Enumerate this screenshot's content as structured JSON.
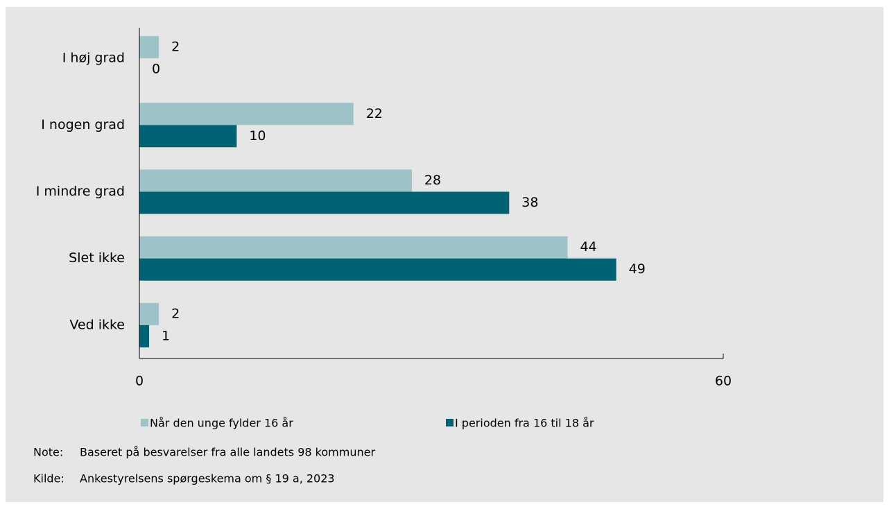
{
  "chart_data": {
    "type": "bar",
    "orientation": "horizontal",
    "categories": [
      "I høj grad",
      "I nogen grad",
      "I mindre grad",
      "Slet ikke",
      "Ved ikke"
    ],
    "series": [
      {
        "name": "Når den unge fylder 16 år",
        "color": "#9dc3c9",
        "values": [
          2,
          22,
          28,
          44,
          2
        ]
      },
      {
        "name": "I perioden fra 16 til 18 år",
        "color": "#006272",
        "values": [
          0,
          10,
          38,
          49,
          1
        ]
      }
    ],
    "xlim": [
      0,
      60
    ],
    "xticks": [
      0,
      60
    ],
    "grid": false,
    "notes": [
      {
        "label": "Note:",
        "text": "Baseret på besvarelser fra alle landets 98 kommuner"
      },
      {
        "label": "Kilde:",
        "text": "Ankestyrelsens spørgeskema om § 19 a, 2023"
      }
    ]
  }
}
